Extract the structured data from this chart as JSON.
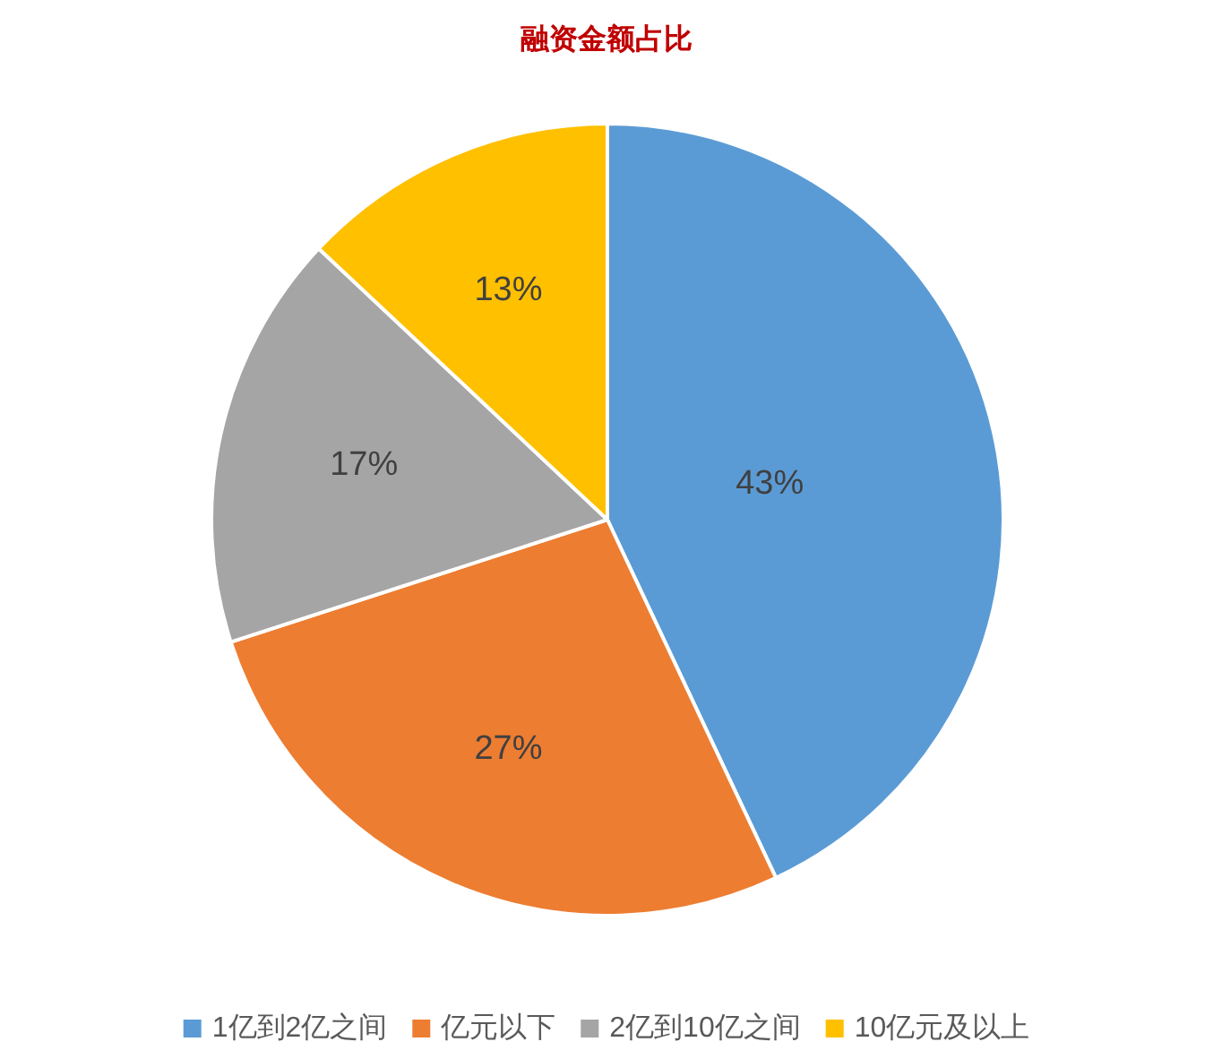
{
  "chart_data": {
    "type": "pie",
    "title": "融资金额占比",
    "categories": [
      "1亿到2亿之间",
      "亿元以下",
      "2亿到10亿之间",
      "10亿元及以上"
    ],
    "values": [
      43,
      27,
      17,
      13
    ],
    "colors": [
      "#5b9bd5",
      "#ed7d31",
      "#a5a5a5",
      "#ffc000"
    ],
    "value_labels": [
      "43%",
      "27%",
      "17%",
      "13%"
    ],
    "legend": "bottom"
  }
}
